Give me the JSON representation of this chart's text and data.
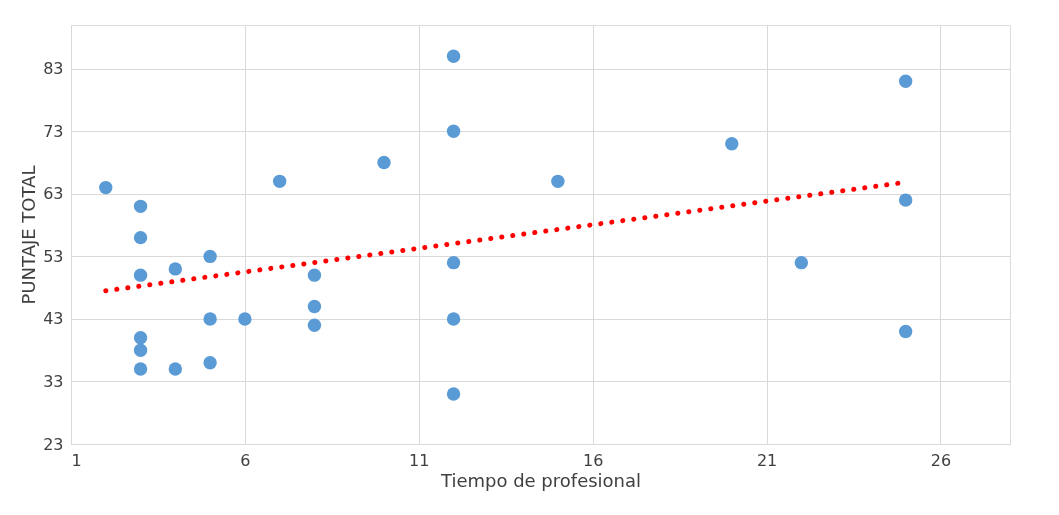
{
  "chart_data": {
    "type": "scatter",
    "xlabel": "Tiempo de profesional",
    "ylabel": "PUNTAJE TOTAL",
    "xlim": [
      1,
      28
    ],
    "xticks": [
      1,
      6,
      11,
      16,
      21,
      26
    ],
    "ylim": [
      23,
      90
    ],
    "yticks": [
      23,
      33,
      43,
      53,
      63,
      73,
      83
    ],
    "grid": true,
    "series": [
      {
        "color": "#5b9bd5",
        "marker": "circle",
        "x": [
          2,
          3,
          3,
          3,
          3,
          3,
          3,
          4,
          4,
          5,
          5,
          5,
          6,
          7,
          8,
          8,
          8,
          10,
          12,
          12,
          12,
          12,
          12,
          15,
          20,
          22,
          25,
          25,
          25
        ],
        "values": [
          64,
          61,
          56,
          50,
          40,
          38,
          35,
          51,
          35,
          53,
          43,
          36,
          43,
          65,
          50,
          45,
          42,
          68,
          85,
          73,
          52,
          43,
          31,
          65,
          71,
          52,
          81,
          62,
          41
        ]
      },
      {
        "type": "line",
        "color": "#ff0000",
        "line_style": "dotted",
        "marker": "none",
        "x": [
          2,
          24.8
        ],
        "values": [
          47.5,
          64.7
        ]
      }
    ]
  }
}
